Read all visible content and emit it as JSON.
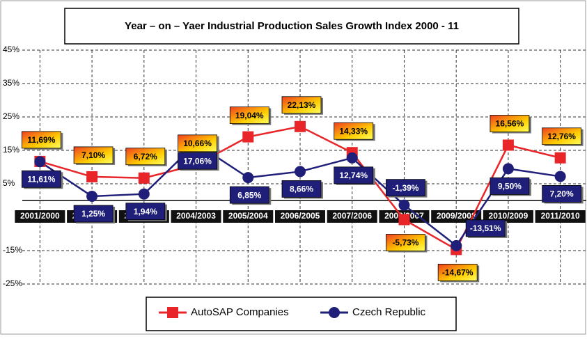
{
  "chart_data": {
    "type": "line",
    "title": "Year – on – Yaer Industrial Production Sales Growth Index 2000 - 11",
    "categories": [
      "2001/2000",
      "2002/2001",
      "2003/2002",
      "2004/2003",
      "2005/2004",
      "2006/2005",
      "2007/2006",
      "2008/2007",
      "2009/2008",
      "2010/2009",
      "2011/2010"
    ],
    "series": [
      {
        "name": "AutoSAP Companies",
        "color": "#e8262a",
        "values": [
          11.69,
          7.1,
          6.72,
          10.66,
          19.04,
          22.13,
          14.33,
          -5.73,
          -14.67,
          16.56,
          12.76
        ],
        "value_labels": [
          "11,69%",
          "7,10%",
          "6,72%",
          "10,66%",
          "19,04%",
          "22,13%",
          "14,33%",
          "-5,73%",
          "-14,67%",
          "16,56%",
          "12,76%"
        ]
      },
      {
        "name": "Czech Republic",
        "color": "#1f1f7a",
        "values": [
          11.61,
          1.25,
          1.94,
          17.06,
          6.85,
          8.66,
          12.74,
          -1.39,
          -13.51,
          9.5,
          7.2
        ],
        "value_labels": [
          "11,61%",
          "1,25%",
          "1,94%",
          "17,06%",
          "6,85%",
          "8,66%",
          "12,74%",
          "-1,39%",
          "-13,51%",
          "9,50%",
          "7,20%"
        ]
      }
    ],
    "ylim": [
      -25,
      45
    ],
    "yticks": [
      {
        "value": -25,
        "label": "-25%"
      },
      {
        "value": -15,
        "label": "-15%"
      },
      {
        "value": 5,
        "label": "5%"
      },
      {
        "value": 15,
        "label": "15%"
      },
      {
        "value": 25,
        "label": "25%"
      },
      {
        "value": 35,
        "label": "35%"
      },
      {
        "value": 45,
        "label": "45%"
      }
    ],
    "grid": true
  }
}
